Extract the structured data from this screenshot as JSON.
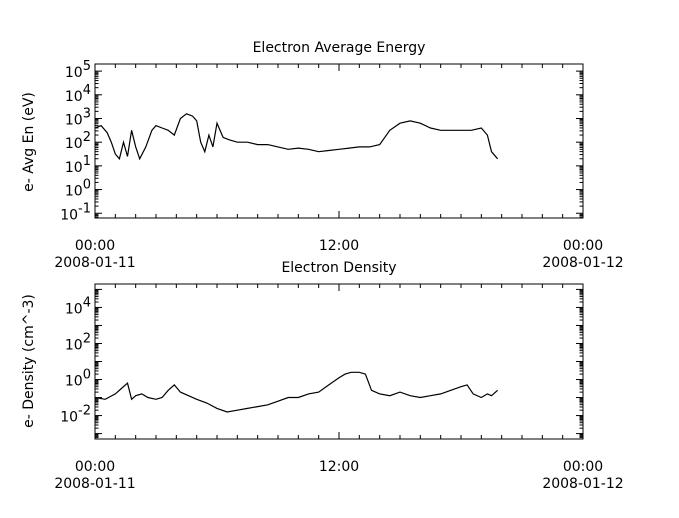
{
  "chart_data": [
    {
      "type": "line",
      "title": "Electron Average Energy",
      "ylabel": "e- Avg En (eV)",
      "xlabel": "",
      "y_scale": "log",
      "ylim_log10": [
        -1.2,
        5.3
      ],
      "y_tick_labels": [
        {
          "base": "10",
          "exp": "-1"
        },
        {
          "base": "10",
          "exp": "0"
        },
        {
          "base": "10",
          "exp": "1"
        },
        {
          "base": "10",
          "exp": "2"
        },
        {
          "base": "10",
          "exp": "3"
        },
        {
          "base": "10",
          "exp": "4"
        },
        {
          "base": "10",
          "exp": "5"
        }
      ],
      "y_tick_exps": [
        -1,
        0,
        1,
        2,
        3,
        4,
        5
      ],
      "x_ticks": [
        {
          "time": "00:00",
          "date": "2008-01-11"
        },
        {
          "time": "12:00",
          "date": ""
        },
        {
          "time": "00:00",
          "date": "2008-01-12"
        }
      ],
      "x_unit": "hours since 2008-01-11 00:00",
      "series": [
        {
          "x": [
            0.0,
            0.3,
            0.6,
            0.8,
            1.0,
            1.2,
            1.4,
            1.6,
            1.8,
            2.0,
            2.2,
            2.5,
            2.8,
            3.0,
            3.3,
            3.6,
            3.9,
            4.2,
            4.5,
            4.8,
            5.0,
            5.2,
            5.4,
            5.6,
            5.8,
            6.0,
            6.3,
            6.6,
            7.0,
            7.5,
            8.0,
            8.5,
            9.0,
            9.5,
            10.0,
            10.5,
            11.0,
            11.5,
            12.0,
            12.5,
            13.0,
            13.5,
            14.0,
            14.5,
            15.0,
            15.5,
            16.0,
            16.5,
            17.0,
            17.5,
            18.0,
            18.5,
            19.0,
            19.3,
            19.5,
            19.8
          ],
          "log10_y": [
            2.6,
            2.7,
            2.4,
            2.0,
            1.5,
            1.3,
            2.0,
            1.4,
            2.5,
            1.8,
            1.3,
            1.8,
            2.5,
            2.7,
            2.6,
            2.5,
            2.3,
            3.0,
            3.2,
            3.1,
            2.9,
            2.0,
            1.6,
            2.3,
            1.8,
            2.8,
            2.2,
            2.1,
            2.0,
            2.0,
            1.9,
            1.9,
            1.8,
            1.7,
            1.75,
            1.7,
            1.6,
            1.65,
            1.7,
            1.75,
            1.8,
            1.8,
            1.9,
            2.5,
            2.8,
            2.9,
            2.8,
            2.6,
            2.5,
            2.5,
            2.5,
            2.5,
            2.6,
            2.3,
            1.6,
            1.3
          ]
        }
      ]
    },
    {
      "type": "line",
      "title": "Electron Density",
      "ylabel": "e- Density (cm^-3)",
      "xlabel": "",
      "y_scale": "log",
      "ylim_log10": [
        -3.3,
        5.3
      ],
      "y_tick_labels": [
        {
          "base": "10",
          "exp": "-2"
        },
        {
          "base": "10",
          "exp": "0"
        },
        {
          "base": "10",
          "exp": "2"
        },
        {
          "base": "10",
          "exp": "4"
        }
      ],
      "y_tick_exps": [
        -2,
        0,
        2,
        4
      ],
      "x_ticks": [
        {
          "time": "00:00",
          "date": "2008-01-11"
        },
        {
          "time": "12:00",
          "date": ""
        },
        {
          "time": "00:00",
          "date": "2008-01-12"
        }
      ],
      "x_unit": "hours since 2008-01-11 00:00",
      "series": [
        {
          "x": [
            0.0,
            0.5,
            1.0,
            1.3,
            1.6,
            1.8,
            2.0,
            2.3,
            2.6,
            3.0,
            3.3,
            3.6,
            3.9,
            4.2,
            4.6,
            5.0,
            5.5,
            6.0,
            6.5,
            7.0,
            7.5,
            8.0,
            8.5,
            9.0,
            9.5,
            10.0,
            10.5,
            11.0,
            11.5,
            12.0,
            12.3,
            12.6,
            13.0,
            13.3,
            13.6,
            14.0,
            14.5,
            15.0,
            15.5,
            16.0,
            16.5,
            17.0,
            17.5,
            18.0,
            18.3,
            18.6,
            19.0,
            19.3,
            19.5,
            19.8
          ],
          "log10_y": [
            -1.0,
            -1.1,
            -0.8,
            -0.5,
            -0.2,
            -1.1,
            -0.9,
            -0.8,
            -1.0,
            -1.1,
            -1.0,
            -0.6,
            -0.3,
            -0.7,
            -0.9,
            -1.1,
            -1.3,
            -1.6,
            -1.8,
            -1.7,
            -1.6,
            -1.5,
            -1.4,
            -1.2,
            -1.0,
            -1.0,
            -0.8,
            -0.7,
            -0.3,
            0.1,
            0.3,
            0.4,
            0.4,
            0.3,
            -0.6,
            -0.8,
            -0.9,
            -0.7,
            -0.9,
            -1.0,
            -0.9,
            -0.8,
            -0.6,
            -0.4,
            -0.3,
            -0.8,
            -1.0,
            -0.8,
            -0.9,
            -0.6
          ]
        }
      ]
    }
  ]
}
